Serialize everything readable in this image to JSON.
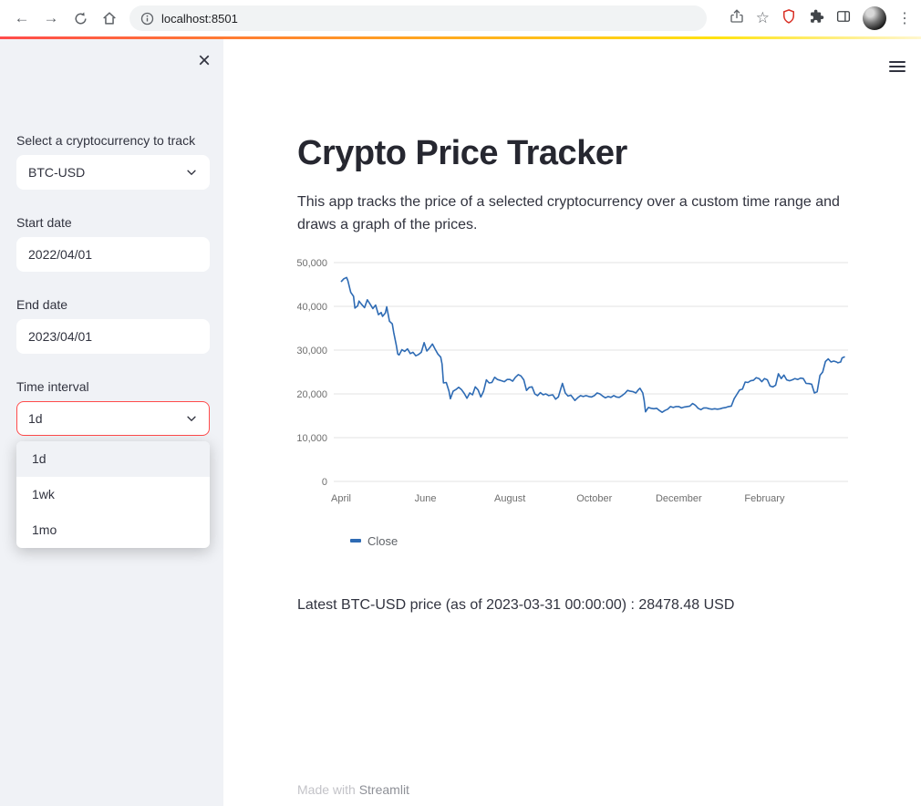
{
  "browser": {
    "url": "localhost:8501",
    "back_glyph": "←",
    "forward_glyph": "→",
    "star_glyph": "☆",
    "menu_glyph": "⋮"
  },
  "sidebar": {
    "close_glyph": "×",
    "crypto_label": "Select a cryptocurrency to track",
    "crypto_value": "BTC-USD",
    "start_date_label": "Start date",
    "start_date_value": "2022/04/01",
    "end_date_label": "End date",
    "end_date_value": "2023/04/01",
    "interval_label": "Time interval",
    "interval_value": "1d",
    "interval_options": [
      "1d",
      "1wk",
      "1mo"
    ],
    "accent_color": "#ff4b4b"
  },
  "main": {
    "title": "Crypto Price Tracker",
    "description": "This app tracks the price of a selected cryptocurrency over a custom time range and draws a graph of the prices.",
    "latest_price_text": "Latest BTC-USD price (as of 2023-03-31 00:00:00) : 28478.48 USD",
    "footer_prefix": "Made with ",
    "footer_link": "Streamlit"
  },
  "chart_data": {
    "type": "line",
    "x_domain": [
      0,
      365
    ],
    "y_domain": [
      0,
      50000
    ],
    "y_ticks": [
      0,
      10000,
      20000,
      30000,
      40000,
      50000
    ],
    "y_tick_labels": [
      "0",
      "10,000",
      "20,000",
      "30,000",
      "40,000",
      "50,000"
    ],
    "x_ticks": [
      {
        "label": "April",
        "day": 0
      },
      {
        "label": "June",
        "day": 61
      },
      {
        "label": "August",
        "day": 122
      },
      {
        "label": "October",
        "day": 183
      },
      {
        "label": "December",
        "day": 244
      },
      {
        "label": "February",
        "day": 306
      }
    ],
    "grid": true,
    "legend_position": "bottom-left",
    "series": [
      {
        "name": "Close",
        "color": "#2e6bb4",
        "points": [
          [
            0,
            45600
          ],
          [
            2,
            46300
          ],
          [
            4,
            46600
          ],
          [
            5,
            45800
          ],
          [
            7,
            43200
          ],
          [
            9,
            42300
          ],
          [
            10,
            39600
          ],
          [
            12,
            40100
          ],
          [
            13,
            41200
          ],
          [
            15,
            40400
          ],
          [
            17,
            39700
          ],
          [
            19,
            41500
          ],
          [
            21,
            40500
          ],
          [
            23,
            39500
          ],
          [
            25,
            40300
          ],
          [
            27,
            38100
          ],
          [
            29,
            38600
          ],
          [
            30,
            37700
          ],
          [
            32,
            38500
          ],
          [
            33,
            39900
          ],
          [
            35,
            36600
          ],
          [
            37,
            36000
          ],
          [
            38,
            34100
          ],
          [
            40,
            31000
          ],
          [
            41,
            29100
          ],
          [
            42,
            28900
          ],
          [
            44,
            30100
          ],
          [
            46,
            29700
          ],
          [
            48,
            30300
          ],
          [
            50,
            29200
          ],
          [
            52,
            29500
          ],
          [
            54,
            28700
          ],
          [
            56,
            29000
          ],
          [
            58,
            29500
          ],
          [
            60,
            31700
          ],
          [
            62,
            29800
          ],
          [
            64,
            30500
          ],
          [
            66,
            31400
          ],
          [
            68,
            30200
          ],
          [
            70,
            29100
          ],
          [
            72,
            28400
          ],
          [
            73,
            26800
          ],
          [
            74,
            22500
          ],
          [
            76,
            22600
          ],
          [
            78,
            20600
          ],
          [
            79,
            18900
          ],
          [
            81,
            20600
          ],
          [
            83,
            21000
          ],
          [
            85,
            21500
          ],
          [
            87,
            21000
          ],
          [
            89,
            20100
          ],
          [
            91,
            19000
          ],
          [
            93,
            20200
          ],
          [
            95,
            19800
          ],
          [
            97,
            21600
          ],
          [
            99,
            20900
          ],
          [
            101,
            19300
          ],
          [
            103,
            20600
          ],
          [
            105,
            23200
          ],
          [
            107,
            22500
          ],
          [
            109,
            22600
          ],
          [
            111,
            23800
          ],
          [
            113,
            23300
          ],
          [
            116,
            23000
          ],
          [
            118,
            22800
          ],
          [
            120,
            23300
          ],
          [
            122,
            23300
          ],
          [
            124,
            22900
          ],
          [
            126,
            23800
          ],
          [
            128,
            24400
          ],
          [
            130,
            24100
          ],
          [
            132,
            23200
          ],
          [
            134,
            20800
          ],
          [
            136,
            21500
          ],
          [
            138,
            21600
          ],
          [
            140,
            20000
          ],
          [
            142,
            19600
          ],
          [
            144,
            20300
          ],
          [
            146,
            19800
          ],
          [
            148,
            20000
          ],
          [
            150,
            19600
          ],
          [
            153,
            19800
          ],
          [
            155,
            18800
          ],
          [
            157,
            19300
          ],
          [
            159,
            21400
          ],
          [
            160,
            22400
          ],
          [
            162,
            20200
          ],
          [
            164,
            19500
          ],
          [
            166,
            19700
          ],
          [
            168,
            18900
          ],
          [
            169,
            18500
          ],
          [
            171,
            19100
          ],
          [
            173,
            19600
          ],
          [
            175,
            19400
          ],
          [
            177,
            19600
          ],
          [
            179,
            19400
          ],
          [
            181,
            19300
          ],
          [
            183,
            19600
          ],
          [
            185,
            20200
          ],
          [
            187,
            20000
          ],
          [
            189,
            19500
          ],
          [
            191,
            19100
          ],
          [
            193,
            19400
          ],
          [
            195,
            19200
          ],
          [
            197,
            19600
          ],
          [
            199,
            19300
          ],
          [
            201,
            19200
          ],
          [
            203,
            19600
          ],
          [
            205,
            20100
          ],
          [
            207,
            20800
          ],
          [
            209,
            20600
          ],
          [
            211,
            20500
          ],
          [
            213,
            20200
          ],
          [
            215,
            21000
          ],
          [
            216,
            21300
          ],
          [
            218,
            20200
          ],
          [
            219,
            18500
          ],
          [
            220,
            15900
          ],
          [
            222,
            16900
          ],
          [
            224,
            16700
          ],
          [
            226,
            16600
          ],
          [
            228,
            16700
          ],
          [
            230,
            16200
          ],
          [
            232,
            15800
          ],
          [
            234,
            16200
          ],
          [
            236,
            16500
          ],
          [
            238,
            17100
          ],
          [
            240,
            16900
          ],
          [
            242,
            17100
          ],
          [
            244,
            17100
          ],
          [
            246,
            16800
          ],
          [
            248,
            17000
          ],
          [
            250,
            17100
          ],
          [
            252,
            17200
          ],
          [
            254,
            17800
          ],
          [
            256,
            17400
          ],
          [
            258,
            16700
          ],
          [
            260,
            16400
          ],
          [
            262,
            16800
          ],
          [
            264,
            16800
          ],
          [
            266,
            16600
          ],
          [
            268,
            16500
          ],
          [
            270,
            16600
          ],
          [
            272,
            16500
          ],
          [
            274,
            16600
          ],
          [
            276,
            16800
          ],
          [
            278,
            16900
          ],
          [
            280,
            17100
          ],
          [
            282,
            17200
          ],
          [
            284,
            18900
          ],
          [
            286,
            19900
          ],
          [
            288,
            20900
          ],
          [
            290,
            21100
          ],
          [
            292,
            22700
          ],
          [
            294,
            22600
          ],
          [
            296,
            23000
          ],
          [
            298,
            23100
          ],
          [
            300,
            23700
          ],
          [
            302,
            23500
          ],
          [
            304,
            22800
          ],
          [
            306,
            23500
          ],
          [
            308,
            23200
          ],
          [
            310,
            21800
          ],
          [
            312,
            21600
          ],
          [
            314,
            22000
          ],
          [
            316,
            24600
          ],
          [
            318,
            23500
          ],
          [
            320,
            24300
          ],
          [
            322,
            23200
          ],
          [
            324,
            23000
          ],
          [
            326,
            23200
          ],
          [
            328,
            23500
          ],
          [
            330,
            23300
          ],
          [
            332,
            23600
          ],
          [
            334,
            23500
          ],
          [
            336,
            22400
          ],
          [
            338,
            22350
          ],
          [
            340,
            22200
          ],
          [
            342,
            20200
          ],
          [
            344,
            20500
          ],
          [
            346,
            24200
          ],
          [
            348,
            25000
          ],
          [
            350,
            27400
          ],
          [
            352,
            28000
          ],
          [
            354,
            27300
          ],
          [
            356,
            27500
          ],
          [
            358,
            27300
          ],
          [
            359,
            27100
          ],
          [
            361,
            27300
          ],
          [
            362,
            28200
          ],
          [
            364,
            28478.48
          ]
        ]
      }
    ]
  }
}
